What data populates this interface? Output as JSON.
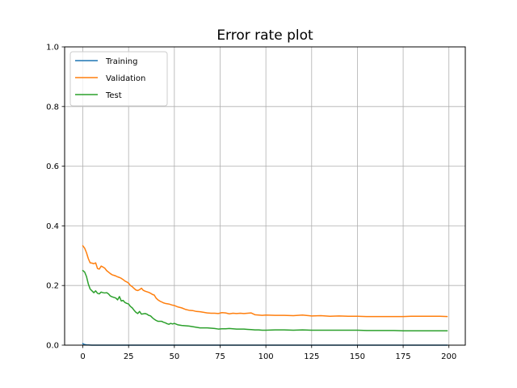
{
  "chart_data": {
    "type": "line",
    "title": "Error rate plot",
    "xlabel": "",
    "ylabel": "",
    "xlim": [
      -9.95,
      208.95
    ],
    "ylim": [
      0.0,
      1.0
    ],
    "xticks": [
      0,
      25,
      50,
      75,
      100,
      125,
      150,
      175,
      200
    ],
    "yticks": [
      0.0,
      0.2,
      0.4,
      0.6,
      0.8,
      1.0
    ],
    "xtick_labels": [
      "0",
      "25",
      "50",
      "75",
      "100",
      "125",
      "150",
      "175",
      "200"
    ],
    "ytick_labels": [
      "0.0",
      "0.2",
      "0.4",
      "0.6",
      "0.8",
      "1.0"
    ],
    "grid": true,
    "legend_position": "top-left",
    "series": [
      {
        "name": "Training",
        "color": "#1f77b4",
        "x": [
          0,
          1,
          2,
          5,
          10,
          50,
          100,
          150,
          199
        ],
        "y": [
          0.005,
          0.002,
          0.001,
          0.0,
          0.0,
          0.0,
          0.0,
          0.0,
          0.0
        ]
      },
      {
        "name": "Validation",
        "color": "#ff7f0e",
        "x": [
          0,
          1,
          2,
          3,
          4,
          5,
          6,
          7,
          8,
          9,
          10,
          11,
          12,
          13,
          14,
          15,
          16,
          17,
          18,
          19,
          20,
          21,
          22,
          23,
          24,
          25,
          26,
          27,
          28,
          29,
          30,
          31,
          32,
          33,
          34,
          35,
          36,
          37,
          38,
          39,
          40,
          41,
          42,
          43,
          44,
          45,
          46,
          47,
          48,
          49,
          50,
          52,
          54,
          56,
          58,
          60,
          62,
          64,
          66,
          68,
          70,
          72,
          74,
          76,
          78,
          80,
          82,
          84,
          86,
          88,
          90,
          92,
          94,
          96,
          98,
          100,
          105,
          110,
          115,
          120,
          125,
          130,
          135,
          140,
          145,
          150,
          155,
          160,
          165,
          170,
          175,
          180,
          185,
          190,
          195,
          199
        ],
        "y": [
          0.333,
          0.325,
          0.31,
          0.29,
          0.276,
          0.275,
          0.273,
          0.276,
          0.257,
          0.255,
          0.265,
          0.262,
          0.258,
          0.25,
          0.245,
          0.24,
          0.236,
          0.234,
          0.232,
          0.229,
          0.227,
          0.224,
          0.22,
          0.215,
          0.212,
          0.208,
          0.2,
          0.196,
          0.19,
          0.185,
          0.183,
          0.186,
          0.191,
          0.184,
          0.181,
          0.179,
          0.177,
          0.174,
          0.17,
          0.168,
          0.158,
          0.152,
          0.148,
          0.145,
          0.142,
          0.14,
          0.139,
          0.138,
          0.136,
          0.134,
          0.133,
          0.128,
          0.125,
          0.12,
          0.117,
          0.116,
          0.113,
          0.112,
          0.11,
          0.108,
          0.107,
          0.107,
          0.106,
          0.109,
          0.108,
          0.105,
          0.107,
          0.106,
          0.107,
          0.106,
          0.107,
          0.108,
          0.102,
          0.101,
          0.1,
          0.101,
          0.1,
          0.1,
          0.099,
          0.101,
          0.098,
          0.099,
          0.097,
          0.098,
          0.097,
          0.097,
          0.096,
          0.096,
          0.096,
          0.096,
          0.096,
          0.097,
          0.097,
          0.097,
          0.097,
          0.096
        ]
      },
      {
        "name": "Test",
        "color": "#2ca02c",
        "x": [
          0,
          1,
          2,
          3,
          4,
          5,
          6,
          7,
          8,
          9,
          10,
          11,
          12,
          13,
          14,
          15,
          16,
          17,
          18,
          19,
          20,
          21,
          22,
          23,
          24,
          25,
          26,
          27,
          28,
          29,
          30,
          31,
          32,
          33,
          34,
          35,
          36,
          37,
          38,
          39,
          40,
          41,
          42,
          43,
          44,
          45,
          46,
          47,
          48,
          49,
          50,
          52,
          54,
          56,
          58,
          60,
          62,
          64,
          66,
          68,
          70,
          72,
          74,
          76,
          78,
          80,
          82,
          84,
          86,
          88,
          90,
          92,
          94,
          96,
          98,
          100,
          105,
          110,
          115,
          120,
          125,
          130,
          135,
          140,
          145,
          150,
          155,
          160,
          165,
          170,
          175,
          180,
          185,
          190,
          195,
          199
        ],
        "y": [
          0.25,
          0.245,
          0.23,
          0.205,
          0.188,
          0.182,
          0.176,
          0.182,
          0.174,
          0.172,
          0.178,
          0.176,
          0.175,
          0.176,
          0.172,
          0.165,
          0.162,
          0.16,
          0.158,
          0.152,
          0.163,
          0.148,
          0.15,
          0.143,
          0.14,
          0.138,
          0.13,
          0.125,
          0.117,
          0.11,
          0.106,
          0.113,
          0.104,
          0.105,
          0.106,
          0.104,
          0.1,
          0.098,
          0.092,
          0.087,
          0.083,
          0.08,
          0.08,
          0.08,
          0.077,
          0.075,
          0.072,
          0.07,
          0.073,
          0.071,
          0.073,
          0.068,
          0.066,
          0.065,
          0.064,
          0.062,
          0.06,
          0.058,
          0.058,
          0.058,
          0.057,
          0.056,
          0.054,
          0.055,
          0.055,
          0.056,
          0.055,
          0.054,
          0.054,
          0.054,
          0.053,
          0.052,
          0.051,
          0.051,
          0.05,
          0.05,
          0.051,
          0.051,
          0.05,
          0.051,
          0.05,
          0.05,
          0.05,
          0.05,
          0.05,
          0.05,
          0.049,
          0.049,
          0.049,
          0.049,
          0.048,
          0.048,
          0.048,
          0.048,
          0.048,
          0.048
        ]
      }
    ]
  }
}
